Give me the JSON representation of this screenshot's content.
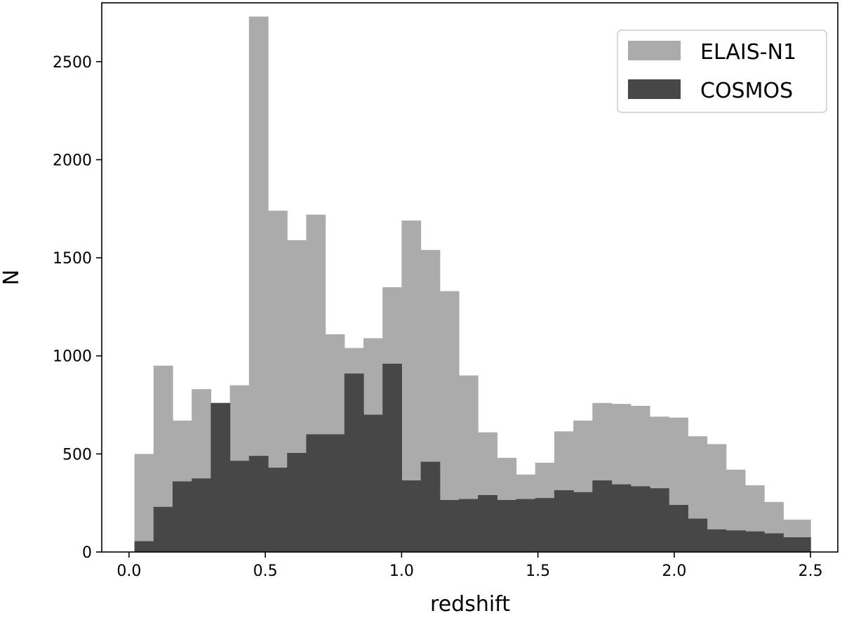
{
  "chart_data": {
    "type": "bar",
    "histogram": true,
    "xlabel": "redshift",
    "ylabel": "N",
    "xlim": [
      -0.1,
      2.6
    ],
    "ylim": [
      0,
      2800
    ],
    "xticks": [
      0.0,
      0.5,
      1.0,
      1.5,
      2.0,
      2.5
    ],
    "xtick_labels": [
      "0.0",
      "0.5",
      "1.0",
      "1.5",
      "2.0",
      "2.5"
    ],
    "yticks": [
      0,
      500,
      1000,
      1500,
      2000,
      2500
    ],
    "ytick_labels": [
      "0",
      "500",
      "1000",
      "1500",
      "2000",
      "2500"
    ],
    "grid": false,
    "legend_position": "top-right",
    "bin_edges": [
      0.02,
      0.09,
      0.16,
      0.23,
      0.3,
      0.37,
      0.44,
      0.51,
      0.58,
      0.65,
      0.72,
      0.79,
      0.86,
      0.93,
      1.0,
      1.07,
      1.14,
      1.21,
      1.28,
      1.35,
      1.42,
      1.49,
      1.56,
      1.63,
      1.7,
      1.77,
      1.84,
      1.91,
      1.98,
      2.05,
      2.12,
      2.19,
      2.26,
      2.33,
      2.4,
      2.5
    ],
    "series": [
      {
        "name": "ELAIS-N1",
        "color": "#ababab",
        "values": [
          500,
          950,
          670,
          830,
          670,
          850,
          2730,
          1740,
          1590,
          1720,
          1110,
          1040,
          1090,
          1350,
          1690,
          1540,
          1330,
          900,
          610,
          480,
          395,
          455,
          615,
          670,
          760,
          755,
          745,
          690,
          685,
          590,
          550,
          420,
          340,
          255,
          165
        ]
      },
      {
        "name": "COSMOS",
        "color": "#474747",
        "values": [
          55,
          230,
          360,
          375,
          760,
          465,
          490,
          430,
          505,
          600,
          600,
          910,
          700,
          960,
          365,
          460,
          265,
          270,
          290,
          265,
          270,
          275,
          315,
          305,
          365,
          345,
          335,
          325,
          240,
          170,
          115,
          110,
          105,
          95,
          75
        ]
      }
    ]
  }
}
